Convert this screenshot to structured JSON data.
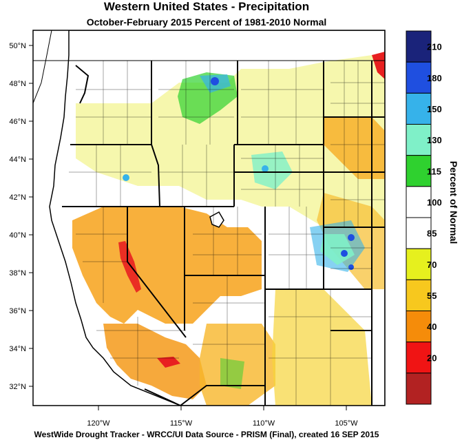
{
  "map": {
    "title": "Western United States - Precipitation",
    "subtitle": "October-February 2015  Percent of 1981-2010 Normal",
    "footer": "WestWide Drought Tracker - WRCC/UI  Data Source - PRISM (Final), created 16 SEP 2015",
    "lat_ticks": [
      "50°N",
      "48°N",
      "46°N",
      "44°N",
      "42°N",
      "40°N",
      "38°N",
      "36°N",
      "34°N",
      "32°N"
    ],
    "lon_ticks": [
      "120°W",
      "115°W",
      "110°W",
      "105°W"
    ]
  },
  "legend": {
    "title": "Percent of Normal",
    "bins": [
      {
        "label": "210",
        "color": "#1a237a"
      },
      {
        "label": "180",
        "color": "#1f4fe0"
      },
      {
        "label": "150",
        "color": "#36b2ea"
      },
      {
        "label": "130",
        "color": "#7ff0c8"
      },
      {
        "label": "115",
        "color": "#2fd12f"
      },
      {
        "label": "100",
        "color": "#ffffff"
      },
      {
        "label": "85",
        "color": "#ffffff"
      },
      {
        "label": "70",
        "color": "#e6f01e"
      },
      {
        "label": "55",
        "color": "#f7c81e"
      },
      {
        "label": "40",
        "color": "#f58c0a"
      },
      {
        "label": "20",
        "color": "#f01414"
      },
      {
        "label": "",
        "color": "#b22222"
      }
    ]
  }
}
